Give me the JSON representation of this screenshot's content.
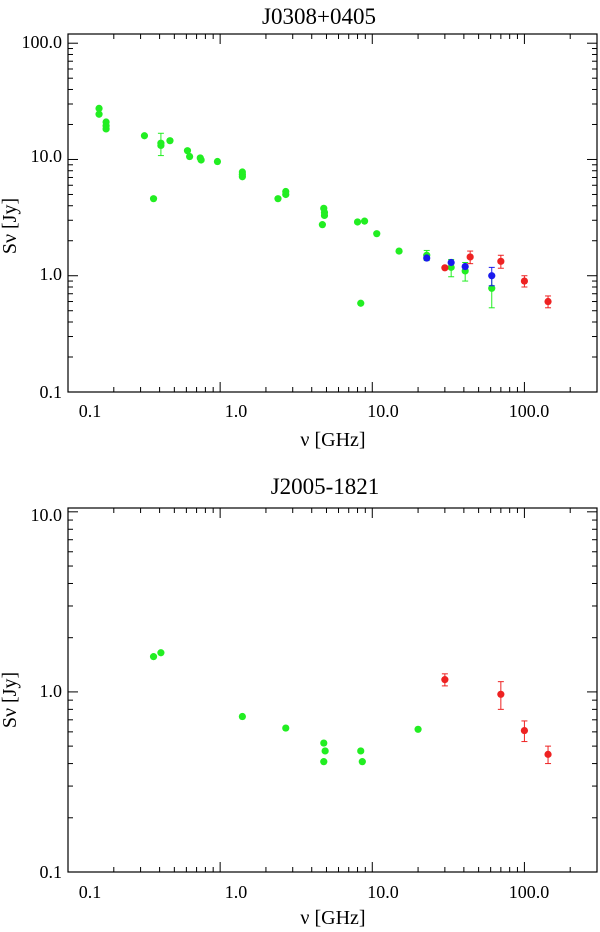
{
  "colors": {
    "green": "#22ee22",
    "red": "#ee2222",
    "blue": "#1a1aee",
    "axis": "#000000"
  },
  "chart_data": [
    {
      "type": "scatter",
      "title": "J0308+0405",
      "xlabel": "ν [GHz]",
      "ylabel": "Sν [Jy]",
      "xscale": "log",
      "yscale": "log",
      "xlim": [
        0.1,
        300
      ],
      "ylim": [
        0.1,
        120
      ],
      "xticks": [
        0.1,
        1.0,
        10.0,
        100.0
      ],
      "xtick_labels": [
        "0.1",
        "1.0",
        "10.0",
        "100.0"
      ],
      "yticks": [
        0.1,
        1.0,
        10.0,
        100.0
      ],
      "ytick_labels": [
        "0.1",
        "1.0",
        "10.0",
        "100.0"
      ],
      "series": [
        {
          "name": "green",
          "color": "#22ee22",
          "points": [
            {
              "x": 0.16,
              "y": 27.5
            },
            {
              "x": 0.16,
              "y": 24.5
            },
            {
              "x": 0.178,
              "y": 21.0
            },
            {
              "x": 0.178,
              "y": 19.5
            },
            {
              "x": 0.178,
              "y": 18.3
            },
            {
              "x": 0.318,
              "y": 16.0
            },
            {
              "x": 0.365,
              "y": 4.6
            },
            {
              "x": 0.408,
              "y": 13.8,
              "err": 3.0
            },
            {
              "x": 0.408,
              "y": 13.2
            },
            {
              "x": 0.468,
              "y": 14.5
            },
            {
              "x": 0.61,
              "y": 11.9
            },
            {
              "x": 0.63,
              "y": 10.6
            },
            {
              "x": 0.74,
              "y": 10.3
            },
            {
              "x": 0.75,
              "y": 9.9
            },
            {
              "x": 0.96,
              "y": 9.6
            },
            {
              "x": 1.4,
              "y": 7.8
            },
            {
              "x": 1.4,
              "y": 7.4
            },
            {
              "x": 1.4,
              "y": 7.1
            },
            {
              "x": 2.4,
              "y": 4.6
            },
            {
              "x": 2.7,
              "y": 5.3
            },
            {
              "x": 2.7,
              "y": 5.0
            },
            {
              "x": 4.8,
              "y": 3.8
            },
            {
              "x": 4.85,
              "y": 3.5
            },
            {
              "x": 4.85,
              "y": 3.3
            },
            {
              "x": 4.7,
              "y": 2.75
            },
            {
              "x": 8.0,
              "y": 2.9
            },
            {
              "x": 8.4,
              "y": 0.58
            },
            {
              "x": 8.9,
              "y": 2.95
            },
            {
              "x": 10.7,
              "y": 2.3
            },
            {
              "x": 15.0,
              "y": 1.63
            },
            {
              "x": 22.8,
              "y": 1.5,
              "err": 0.15
            },
            {
              "x": 33.0,
              "y": 1.18,
              "err": 0.2
            },
            {
              "x": 40.8,
              "y": 1.1,
              "err": 0.2
            },
            {
              "x": 61.0,
              "y": 0.78,
              "err": 0.25
            }
          ]
        },
        {
          "name": "blue",
          "color": "#1a1aee",
          "points": [
            {
              "x": 22.8,
              "y": 1.42
            },
            {
              "x": 33.0,
              "y": 1.3
            },
            {
              "x": 40.8,
              "y": 1.2
            },
            {
              "x": 61.0,
              "y": 1.0,
              "err": 0.18
            }
          ]
        },
        {
          "name": "red",
          "color": "#ee2222",
          "points": [
            {
              "x": 30.0,
              "y": 1.17
            },
            {
              "x": 44.0,
              "y": 1.45,
              "err": 0.18
            },
            {
              "x": 70.0,
              "y": 1.33,
              "err": 0.17
            },
            {
              "x": 100.0,
              "y": 0.9,
              "err": 0.1
            },
            {
              "x": 143.0,
              "y": 0.6,
              "err": 0.07
            }
          ]
        }
      ]
    },
    {
      "type": "scatter",
      "title": "J2005-1821",
      "xlabel": "ν [GHz]",
      "ylabel": "Sν [Jy]",
      "xscale": "log",
      "yscale": "log",
      "xlim": [
        0.1,
        300
      ],
      "ylim": [
        0.1,
        10.5
      ],
      "xticks": [
        0.1,
        1.0,
        10.0,
        100.0
      ],
      "xtick_labels": [
        "0.1",
        "1.0",
        "10.0",
        "100.0"
      ],
      "yticks": [
        0.1,
        1.0,
        10.0
      ],
      "ytick_labels": [
        "0.1",
        "1.0",
        "10.0"
      ],
      "series": [
        {
          "name": "green",
          "color": "#22ee22",
          "points": [
            {
              "x": 0.365,
              "y": 1.57
            },
            {
              "x": 0.408,
              "y": 1.65
            },
            {
              "x": 1.4,
              "y": 0.73
            },
            {
              "x": 2.7,
              "y": 0.63
            },
            {
              "x": 4.8,
              "y": 0.52
            },
            {
              "x": 4.9,
              "y": 0.47
            },
            {
              "x": 4.8,
              "y": 0.41
            },
            {
              "x": 8.4,
              "y": 0.47
            },
            {
              "x": 8.6,
              "y": 0.41
            },
            {
              "x": 20.0,
              "y": 0.62
            }
          ]
        },
        {
          "name": "red",
          "color": "#ee2222",
          "points": [
            {
              "x": 30.0,
              "y": 1.17,
              "err": 0.09
            },
            {
              "x": 70.0,
              "y": 0.97,
              "err": 0.17
            },
            {
              "x": 100.0,
              "y": 0.61,
              "err": 0.08
            },
            {
              "x": 143.0,
              "y": 0.45,
              "err": 0.05
            }
          ]
        }
      ]
    }
  ]
}
